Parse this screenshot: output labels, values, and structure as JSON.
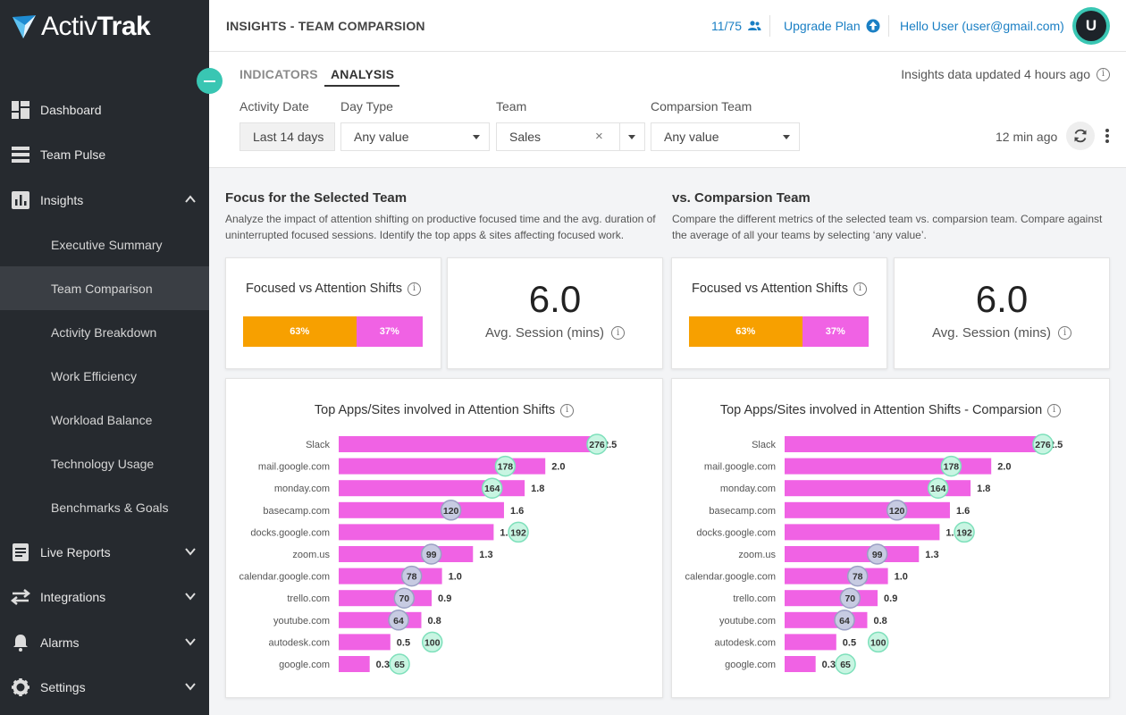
{
  "app": {
    "logo_text_a": "Activ",
    "logo_text_b": "Trak"
  },
  "sidebar": {
    "items": [
      {
        "label": "Dashboard",
        "icon": "dashboard-icon"
      },
      {
        "label": "Team Pulse",
        "icon": "team-pulse-icon"
      },
      {
        "label": "Insights",
        "icon": "insights-icon",
        "expanded": true
      },
      {
        "label": "Live Reports",
        "icon": "live-reports-icon"
      },
      {
        "label": "Integrations",
        "icon": "integrations-icon"
      },
      {
        "label": "Alarms",
        "icon": "bell-icon"
      },
      {
        "label": "Settings",
        "icon": "gear-icon"
      }
    ],
    "sub_items": [
      {
        "label": "Executive Summary"
      },
      {
        "label": "Team Comparison",
        "active": true
      },
      {
        "label": "Activity Breakdown"
      },
      {
        "label": "Work Efficiency"
      },
      {
        "label": "Workload Balance"
      },
      {
        "label": "Technology Usage"
      },
      {
        "label": "Benchmarks & Goals"
      }
    ]
  },
  "header": {
    "title": "INSIGHTS - TEAM COMPARSION",
    "seats": "11/75",
    "upgrade": "Upgrade Plan",
    "user": "Hello User  (user@gmail.com)",
    "avatar_letter": "U"
  },
  "tabs": [
    {
      "label": "INDICATORS",
      "active": false
    },
    {
      "label": "ANALYSIS",
      "active": true
    }
  ],
  "updated_text": "Insights data updated 4 hours ago",
  "filters": {
    "activity_date": {
      "label": "Activity Date",
      "value": "Last 14 days"
    },
    "day_type": {
      "label": "Day Type",
      "value": "Any value"
    },
    "team": {
      "label": "Team",
      "value": "Sales",
      "clear": "×"
    },
    "comparison_team": {
      "label": "Comparsion Team",
      "value": "Any value"
    }
  },
  "refresh_ago": "12 min ago",
  "colors": {
    "focused": "#f7a000",
    "shifts": "#f062e4",
    "bubble_up": "#c8f5e2",
    "bubble_up_border": "#7ee0bb",
    "bubble_down": "#c7cbe2",
    "bubble_down_border": "#9aa0c4",
    "accent": "#39c6b3"
  },
  "left": {
    "title": "Focus for the Selected Team",
    "desc": "Analyze the impact of attention shifting on productive focused time and the avg. duration of uninterrupted focused sessions. Identify the top apps & sites affecting focused work.",
    "focus_card_title": "Focused vs Attention Shifts",
    "focused_pct": 63,
    "focused_label": "63%",
    "shift_pct": 37,
    "shift_label": "37%",
    "avg_value": "6.0",
    "avg_label": "Avg. Session (mins)",
    "apps_title": "Top Apps/Sites involved in Attention Shifts"
  },
  "right": {
    "title": "vs. Comparsion Team",
    "desc": "Compare the different metrics of the selected team vs. comparsion team. Compare against the average of all your teams by selecting ‘any value’.",
    "focus_card_title": "Focused vs Attention Shifts",
    "focused_pct": 63,
    "focused_label": "63%",
    "shift_pct": 37,
    "shift_label": "37%",
    "avg_value": "6.0",
    "avg_label": "Avg. Session (mins)",
    "apps_title": "Top Apps/Sites involved in Attention Shifts - Comparsion"
  },
  "chart_data": [
    {
      "type": "bar",
      "title": "Top Apps/Sites involved in Attention Shifts",
      "orientation": "horizontal",
      "categories": [
        "Slack",
        "mail.google.com",
        "monday.com",
        "basecamp.com",
        "docks.google.com",
        "zoom.us",
        "calendar.google.com",
        "trello.com",
        "youtube.com",
        "autodesk.com",
        "google.com"
      ],
      "values": [
        2.5,
        2.0,
        1.8,
        1.6,
        1.5,
        1.3,
        1.0,
        0.9,
        0.8,
        0.5,
        0.3
      ],
      "value_labels": [
        "2.5",
        "2.0",
        "1.8",
        "1.6",
        "1.5",
        "1.3",
        "1.0",
        "0.9",
        "0.8",
        "0.5",
        "0.3"
      ],
      "bubbles": [
        276,
        178,
        164,
        120,
        192,
        99,
        78,
        70,
        64,
        100,
        65
      ],
      "bubble_direction": [
        "up",
        "up",
        "up",
        "down",
        "up",
        "down",
        "down",
        "down",
        "down",
        "up",
        "up"
      ],
      "xlim": [
        0,
        2.5
      ]
    },
    {
      "type": "bar",
      "title": "Top Apps/Sites involved in Attention Shifts - Comparsion",
      "orientation": "horizontal",
      "categories": [
        "Slack",
        "mail.google.com",
        "monday.com",
        "basecamp.com",
        "docks.google.com",
        "zoom.us",
        "calendar.google.com",
        "trello.com",
        "youtube.com",
        "autodesk.com",
        "google.com"
      ],
      "values": [
        2.5,
        2.0,
        1.8,
        1.6,
        1.5,
        1.3,
        1.0,
        0.9,
        0.8,
        0.5,
        0.3
      ],
      "value_labels": [
        "2.5",
        "2.0",
        "1.8",
        "1.6",
        "1.5",
        "1.3",
        "1.0",
        "0.9",
        "0.8",
        "0.5",
        "0.3"
      ],
      "bubbles": [
        276,
        178,
        164,
        120,
        192,
        99,
        78,
        70,
        64,
        100,
        65
      ],
      "bubble_direction": [
        "up",
        "up",
        "up",
        "down",
        "up",
        "down",
        "down",
        "down",
        "down",
        "up",
        "up"
      ],
      "xlim": [
        0,
        2.5
      ]
    }
  ]
}
